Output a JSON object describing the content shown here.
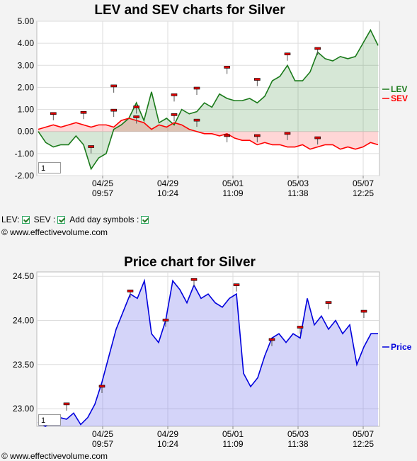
{
  "top_chart": {
    "zoom_value": "1",
    "chart_data": {
      "type": "line",
      "title": "LEV and SEV charts for Silver",
      "ylim": [
        -2.0,
        5.0
      ],
      "y_ticks": [
        "5.00",
        "4.00",
        "3.00",
        "2.00",
        "1.00",
        "0.00",
        "-1.00",
        "-2.00"
      ],
      "x_ticks": [
        {
          "date": "04/25",
          "time": "09:57"
        },
        {
          "date": "04/29",
          "time": "10:24"
        },
        {
          "date": "05/01",
          "time": "11:09"
        },
        {
          "date": "05/03",
          "time": "11:38"
        },
        {
          "date": "05/07",
          "time": "12:25"
        }
      ],
      "series": [
        {
          "name": "LEV",
          "color": "#1a7a1a",
          "values": [
            0.0,
            -0.5,
            -0.7,
            -0.6,
            -0.6,
            -0.2,
            -0.6,
            -1.7,
            -1.2,
            -1.0,
            0.1,
            0.3,
            0.6,
            1.3,
            0.5,
            1.8,
            0.4,
            0.6,
            0.3,
            1.0,
            0.8,
            0.9,
            1.3,
            1.1,
            1.7,
            1.5,
            1.4,
            1.4,
            1.5,
            1.3,
            1.6,
            2.3,
            2.5,
            3.0,
            2.3,
            2.3,
            2.7,
            3.6,
            3.3,
            3.2,
            3.4,
            3.3,
            3.4,
            4.0,
            4.6,
            3.9
          ]
        },
        {
          "name": "SEV",
          "color": "#ff0000",
          "values": [
            0.1,
            0.2,
            0.3,
            0.2,
            0.3,
            0.4,
            0.3,
            0.2,
            0.3,
            0.3,
            0.2,
            0.5,
            0.6,
            0.5,
            0.4,
            0.1,
            0.3,
            0.2,
            0.4,
            0.3,
            0.1,
            0.0,
            -0.1,
            -0.1,
            -0.2,
            -0.1,
            -0.3,
            -0.4,
            -0.4,
            -0.6,
            -0.5,
            -0.6,
            -0.6,
            -0.7,
            -0.7,
            -0.6,
            -0.8,
            -0.7,
            -0.6,
            -0.6,
            -0.8,
            -0.7,
            -0.8,
            -0.7,
            -0.5,
            -0.6
          ]
        }
      ],
      "day_markers": [
        {
          "x_index": 2,
          "value": 0.8
        },
        {
          "x_index": 6,
          "value": 0.85
        },
        {
          "x_index": 7,
          "value": -0.7
        },
        {
          "x_index": 10,
          "value": 2.05
        },
        {
          "x_index": 10,
          "value": 0.95
        },
        {
          "x_index": 13,
          "value": 1.1
        },
        {
          "x_index": 13,
          "value": 0.65
        },
        {
          "x_index": 18,
          "value": 1.65
        },
        {
          "x_index": 18,
          "value": 0.75
        },
        {
          "x_index": 21,
          "value": 1.95
        },
        {
          "x_index": 21,
          "value": 0.5
        },
        {
          "x_index": 25,
          "value": 2.9
        },
        {
          "x_index": 25,
          "value": -0.2
        },
        {
          "x_index": 29,
          "value": 2.35
        },
        {
          "x_index": 29,
          "value": -0.2
        },
        {
          "x_index": 33,
          "value": 3.5
        },
        {
          "x_index": 33,
          "value": -0.1
        },
        {
          "x_index": 37,
          "value": 3.75
        },
        {
          "x_index": 37,
          "value": -0.3
        }
      ]
    }
  },
  "controls": {
    "lev_label": "LEV:",
    "sev_label": "SEV :",
    "day_label": "Add day symbols :"
  },
  "copyright_top": "© www.effectivevolume.com",
  "bottom_chart": {
    "zoom_value": "1",
    "chart_data": {
      "type": "area",
      "title": "Price chart for Silver",
      "ylim": [
        22.8,
        24.55
      ],
      "y_ticks": [
        "24.50",
        "24.00",
        "23.50",
        "23.00"
      ],
      "x_ticks": [
        {
          "date": "04/25",
          "time": "09:57"
        },
        {
          "date": "04/29",
          "time": "10:24"
        },
        {
          "date": "05/01",
          "time": "11:09"
        },
        {
          "date": "05/03",
          "time": "11:38"
        },
        {
          "date": "05/07",
          "time": "12:25"
        }
      ],
      "series": [
        {
          "name": "Price",
          "color": "#0000dd",
          "values": [
            22.85,
            22.8,
            22.85,
            22.9,
            22.88,
            22.95,
            22.82,
            22.9,
            23.05,
            23.3,
            23.6,
            23.9,
            24.1,
            24.3,
            24.25,
            24.45,
            23.85,
            23.75,
            24.0,
            24.45,
            24.35,
            24.2,
            24.4,
            24.25,
            24.3,
            24.2,
            24.15,
            24.25,
            24.3,
            23.4,
            23.25,
            23.35,
            23.6,
            23.8,
            23.85,
            23.75,
            23.85,
            23.8,
            24.25,
            23.95,
            24.05,
            23.9,
            24.0,
            23.85,
            23.95,
            23.5,
            23.7,
            23.85,
            23.85
          ]
        }
      ],
      "day_markers": [
        {
          "x_index": 4,
          "value": 23.05
        },
        {
          "x_index": 9,
          "value": 23.25
        },
        {
          "x_index": 13,
          "value": 24.33
        },
        {
          "x_index": 18,
          "value": 24.0
        },
        {
          "x_index": 22,
          "value": 24.46
        },
        {
          "x_index": 28,
          "value": 24.4
        },
        {
          "x_index": 33,
          "value": 23.78
        },
        {
          "x_index": 37,
          "value": 23.92
        },
        {
          "x_index": 41,
          "value": 24.2
        },
        {
          "x_index": 46,
          "value": 24.1
        }
      ]
    }
  },
  "copyright_bottom": "© www.effectivevolume.com"
}
